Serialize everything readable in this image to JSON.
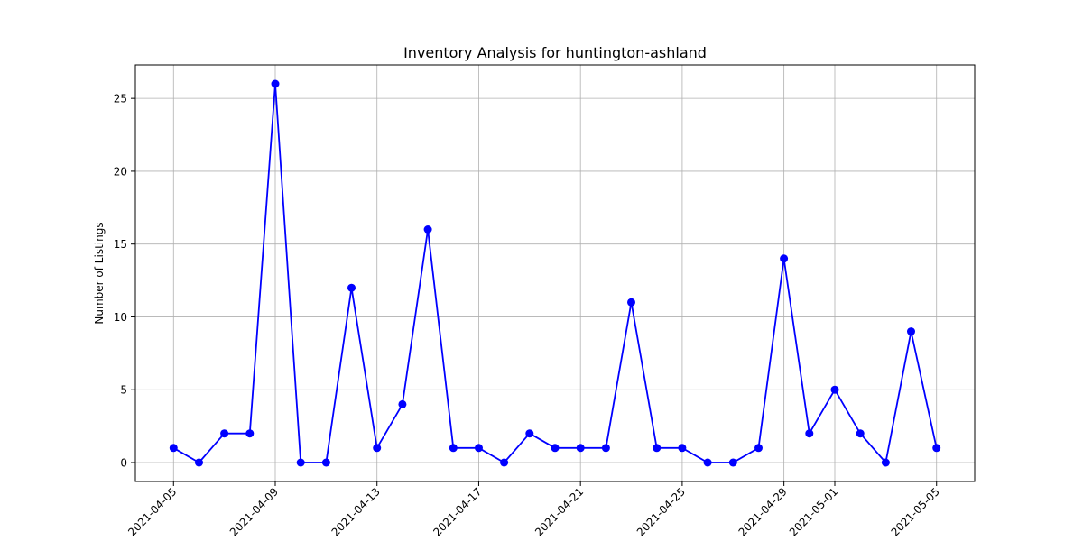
{
  "chart_data": {
    "type": "line",
    "title": "Inventory Analysis for huntington-ashland",
    "xlabel": "",
    "ylabel": "Number of Listings",
    "x": [
      "2021-04-05",
      "2021-04-06",
      "2021-04-07",
      "2021-04-08",
      "2021-04-09",
      "2021-04-10",
      "2021-04-11",
      "2021-04-12",
      "2021-04-13",
      "2021-04-14",
      "2021-04-15",
      "2021-04-16",
      "2021-04-17",
      "2021-04-18",
      "2021-04-19",
      "2021-04-20",
      "2021-04-21",
      "2021-04-22",
      "2021-04-23",
      "2021-04-24",
      "2021-04-25",
      "2021-04-26",
      "2021-04-27",
      "2021-04-28",
      "2021-04-29",
      "2021-04-30",
      "2021-05-01",
      "2021-05-02",
      "2021-05-03",
      "2021-05-04",
      "2021-05-05"
    ],
    "series": [
      {
        "values": [
          1,
          0,
          2,
          2,
          26,
          0,
          0,
          12,
          1,
          4,
          16,
          1,
          1,
          0,
          2,
          1,
          1,
          1,
          11,
          1,
          1,
          0,
          0,
          1,
          14,
          2,
          5,
          2,
          0,
          9,
          1
        ],
        "color": "#0000ff",
        "marker": "circle"
      }
    ],
    "xticks": [
      "2021-04-05",
      "2021-04-09",
      "2021-04-13",
      "2021-04-17",
      "2021-04-21",
      "2021-04-25",
      "2021-04-29",
      "2021-05-01",
      "2021-05-05"
    ],
    "yticks": [
      0,
      5,
      10,
      15,
      20,
      25
    ],
    "xlim": [
      "2021-04-03.5",
      "2021-05-06.5"
    ],
    "ylim": [
      -1.3,
      27.3
    ],
    "grid": true
  }
}
